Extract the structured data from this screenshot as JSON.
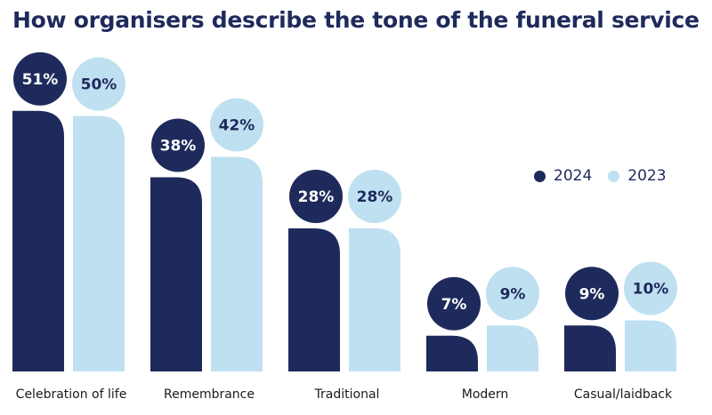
{
  "title": "How organisers describe the tone of the funeral service",
  "colors": {
    "series_2024": "#1f2a5c",
    "series_2023": "#bfe0f0",
    "text": "#1f2a5c"
  },
  "legend": {
    "items": [
      {
        "label": "2024"
      },
      {
        "label": "2023"
      }
    ]
  },
  "chart_data": {
    "type": "bar",
    "title": "How organisers describe the tone of the funeral service",
    "categories": [
      "Celebration of life",
      "Remembrance",
      "Traditional",
      "Modern",
      "Casual/laidback"
    ],
    "series": [
      {
        "name": "2024",
        "values": [
          51,
          38,
          28,
          7,
          9
        ],
        "labels": [
          "51%",
          "38%",
          "28%",
          "7%",
          "9%"
        ]
      },
      {
        "name": "2023",
        "values": [
          50,
          42,
          28,
          9,
          10
        ],
        "labels": [
          "50%",
          "42%",
          "28%",
          "9%",
          "10%"
        ]
      }
    ],
    "unit": "%",
    "legend_position": "right",
    "grid": false
  }
}
